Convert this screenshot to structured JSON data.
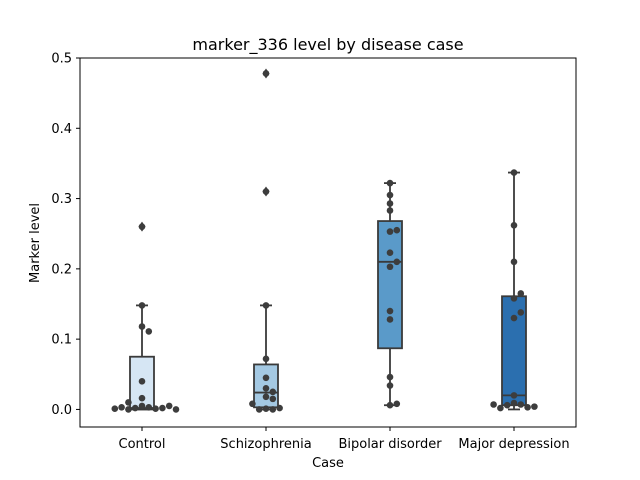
{
  "chart_data": {
    "type": "box",
    "title": "marker_336 level by disease case",
    "xlabel": "Case",
    "ylabel": "Marker level",
    "ylim": [
      -0.025,
      0.5
    ],
    "yticks": [
      "0.0",
      "0.1",
      "0.2",
      "0.3",
      "0.4",
      "0.5"
    ],
    "grid": false,
    "categories": [
      "Control",
      "Schizophrenia",
      "Bipolar disorder",
      "Major depression"
    ],
    "colors": [
      "#d6e6f4",
      "#a4c9e3",
      "#5a9ac9",
      "#2b6faf"
    ],
    "boxes": [
      {
        "q1": 0.0,
        "median": 0.002,
        "q3": 0.075,
        "whisker_low": 0.0,
        "whisker_high": 0.148,
        "outliers": [
          0.26
        ]
      },
      {
        "q1": 0.003,
        "median": 0.024,
        "q3": 0.064,
        "whisker_low": 0.0,
        "whisker_high": 0.148,
        "outliers": [
          0.31,
          0.478
        ]
      },
      {
        "q1": 0.087,
        "median": 0.21,
        "q3": 0.268,
        "whisker_low": 0.006,
        "whisker_high": 0.322,
        "outliers": []
      },
      {
        "q1": 0.006,
        "median": 0.02,
        "q3": 0.161,
        "whisker_low": 0.0,
        "whisker_high": 0.337,
        "outliers": []
      }
    ],
    "points": [
      [
        0.005,
        0.003,
        0.002,
        0.001,
        0.0,
        0.002,
        0.003,
        0.005,
        0.001,
        0.0,
        0.016,
        0.01,
        0.04,
        0.118,
        0.111,
        0.148,
        0.26
      ],
      [
        0.001,
        0.0,
        0.0,
        0.002,
        0.008,
        0.018,
        0.015,
        0.025,
        0.03,
        0.045,
        0.072,
        0.148,
        0.31,
        0.478
      ],
      [
        0.006,
        0.008,
        0.034,
        0.046,
        0.128,
        0.14,
        0.203,
        0.21,
        0.223,
        0.253,
        0.255,
        0.283,
        0.293,
        0.305,
        0.322
      ],
      [
        0.009,
        0.007,
        0.006,
        0.003,
        0.002,
        0.004,
        0.007,
        0.02,
        0.13,
        0.138,
        0.158,
        0.165,
        0.21,
        0.262,
        0.337
      ]
    ]
  }
}
